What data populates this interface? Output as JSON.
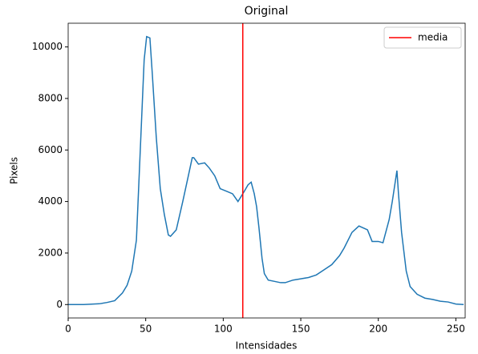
{
  "chart_data": {
    "type": "line",
    "title": "Original",
    "x_label": "Intensidades",
    "y_label": "Pixels",
    "x": [
      0,
      10,
      20,
      25,
      30,
      35,
      38,
      41,
      44,
      46.5,
      49,
      50.6,
      52.7,
      54.2,
      56.8,
      59.4,
      62,
      64.6,
      66,
      69.7,
      73.9,
      77.5,
      80,
      81,
      84,
      88,
      91,
      94.5,
      98,
      102,
      106,
      109.5,
      113.6,
      116,
      118,
      120,
      121.5,
      123,
      125,
      126.5,
      129,
      133,
      137,
      140,
      145,
      150,
      155,
      160,
      165,
      170,
      175,
      178,
      183,
      187.5,
      193,
      196,
      200,
      203,
      207,
      209,
      212,
      213,
      215,
      218,
      220.5,
      225,
      230,
      235,
      240,
      245,
      250,
      255
    ],
    "series": [
      {
        "name": "Pixels",
        "color": "#1f77b4",
        "values": [
          0,
          0,
          30,
          80,
          150,
          450,
          750,
          1300,
          2500,
          6000,
          9500,
          10400,
          10350,
          9000,
          6500,
          4500,
          3500,
          2700,
          2650,
          2900,
          4000,
          5000,
          5700,
          5700,
          5450,
          5500,
          5300,
          5000,
          4500,
          4400,
          4300,
          4000,
          4400,
          4650,
          4750,
          4300,
          3800,
          3000,
          1800,
          1200,
          950,
          900,
          850,
          850,
          950,
          1000,
          1050,
          1150,
          1350,
          1550,
          1900,
          2200,
          2800,
          3050,
          2900,
          2450,
          2450,
          2400,
          3300,
          4000,
          5200,
          4300,
          2800,
          1300,
          700,
          400,
          250,
          200,
          130,
          100,
          20,
          0
        ]
      }
    ],
    "mean_line": {
      "name": "media",
      "color": "#ff0000",
      "x": 112.6
    },
    "xlim": [
      0,
      256
    ],
    "ylim": [
      -520,
      10920
    ],
    "xticks": [
      0,
      50,
      100,
      150,
      200,
      250
    ],
    "yticks": [
      0,
      2000,
      4000,
      6000,
      8000,
      10000
    ],
    "legend": "upper right"
  }
}
